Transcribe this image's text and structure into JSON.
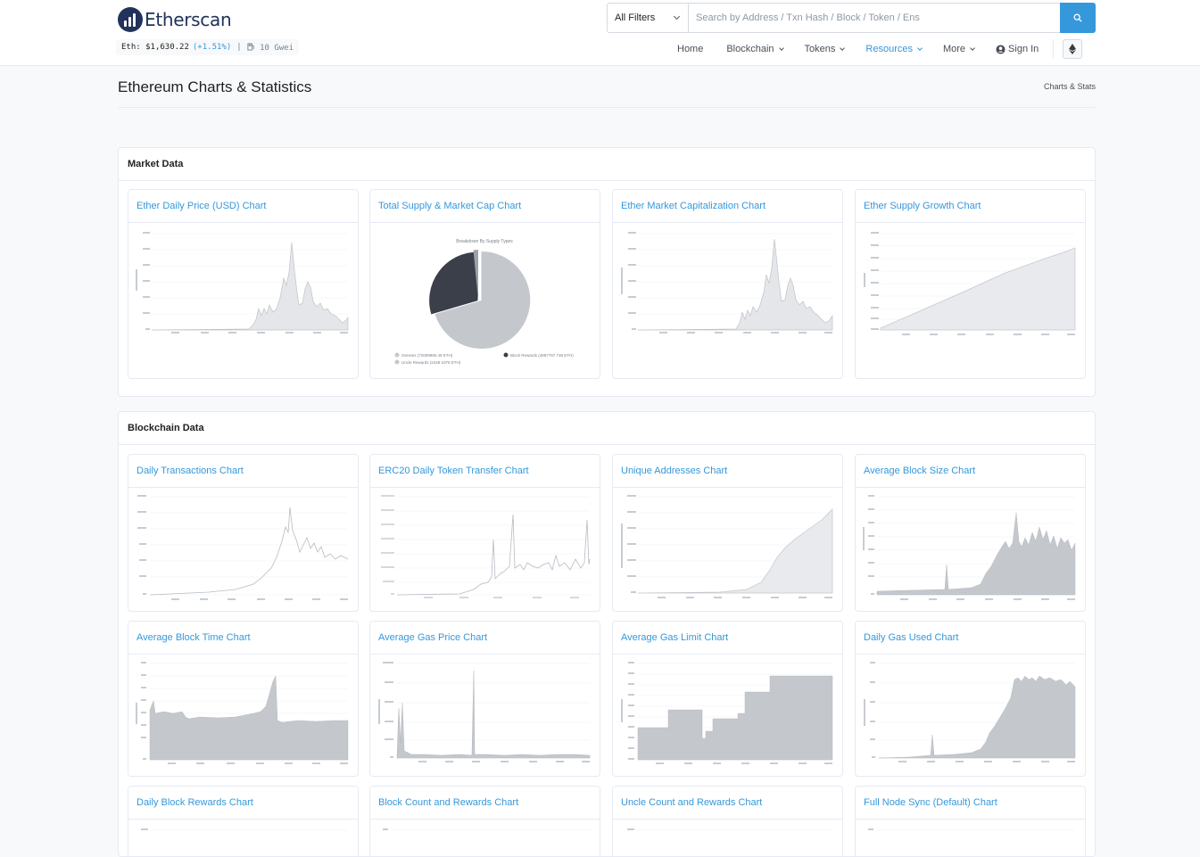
{
  "header": {
    "logo_text": "Etherscan",
    "eth_label": "Eth:",
    "eth_price": "$1,630.22",
    "eth_change": "(+1.51%)",
    "separator": "|",
    "gas": "10 Gwei",
    "filter_label": "All Filters",
    "search_placeholder": "Search by Address / Txn Hash / Block / Token / Ens",
    "nav": [
      "Home",
      "Blockchain",
      "Tokens",
      "Resources",
      "More"
    ],
    "sign_in": "Sign In"
  },
  "page": {
    "title": "Ethereum Charts & Statistics",
    "breadcrumb": "Charts & Stats"
  },
  "sections": {
    "market": {
      "title": "Market Data",
      "cards": [
        "Ether Daily Price (USD) Chart",
        "Total Supply & Market Cap Chart",
        "Ether Market Capitalization Chart",
        "Ether Supply Growth Chart"
      ]
    },
    "blockchain": {
      "title": "Blockchain Data",
      "cards": [
        "Daily Transactions Chart",
        "ERC20 Daily Token Transfer Chart",
        "Unique Addresses Chart",
        "Average Block Size Chart",
        "Average Block Time Chart",
        "Average Gas Price Chart",
        "Average Gas Limit Chart",
        "Daily Gas Used Chart",
        "Daily Block Rewards Chart",
        "Block Count and Rewards Chart",
        "Uncle Count and Rewards Chart",
        "Full Node Sync (Default) Chart"
      ]
    }
  },
  "pie": {
    "title": "Breakdown By Supply Types",
    "legend": [
      "Genesis (72009990.49 ETH)",
      "Block Rewards (4897797.738 ETH)",
      "Uncle Rewards (2448 1075 ETH)"
    ]
  },
  "colors": {
    "accent": "#3498db",
    "chart_fill": "#c4c7cc",
    "pie_dark": "#3b3f4a"
  }
}
